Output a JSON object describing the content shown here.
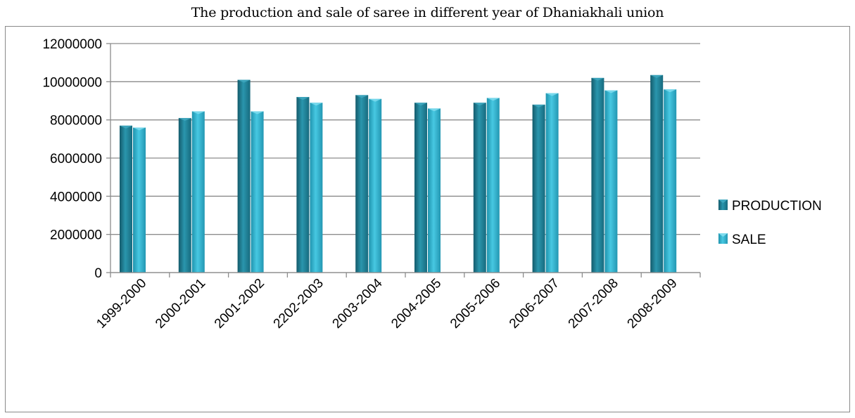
{
  "chart_data": {
    "type": "bar",
    "title": "The production and sale of saree in different year of Dhaniakhali union",
    "xlabel": "",
    "ylabel": "",
    "ylim": [
      0,
      12000000
    ],
    "yticks": [
      0,
      2000000,
      4000000,
      6000000,
      8000000,
      10000000,
      12000000
    ],
    "grid": true,
    "legend": "right",
    "categories": [
      "1999-2000",
      "2000-2001",
      "2001-2002",
      "2202-2003",
      "2003-2004",
      "2004-2005",
      "2005-2006",
      "2006-2007",
      "2007-2008",
      "2008-2009"
    ],
    "series": [
      {
        "name": "PRODUCTION",
        "color": "#1f7f97",
        "values": [
          7700000,
          8100000,
          10100000,
          9200000,
          9300000,
          8900000,
          8900000,
          8800000,
          10200000,
          10350000
        ]
      },
      {
        "name": "SALE",
        "color": "#2fb3cf",
        "values": [
          7600000,
          8450000,
          8450000,
          8900000,
          9100000,
          8600000,
          9150000,
          9400000,
          9550000,
          9600000
        ]
      }
    ]
  }
}
